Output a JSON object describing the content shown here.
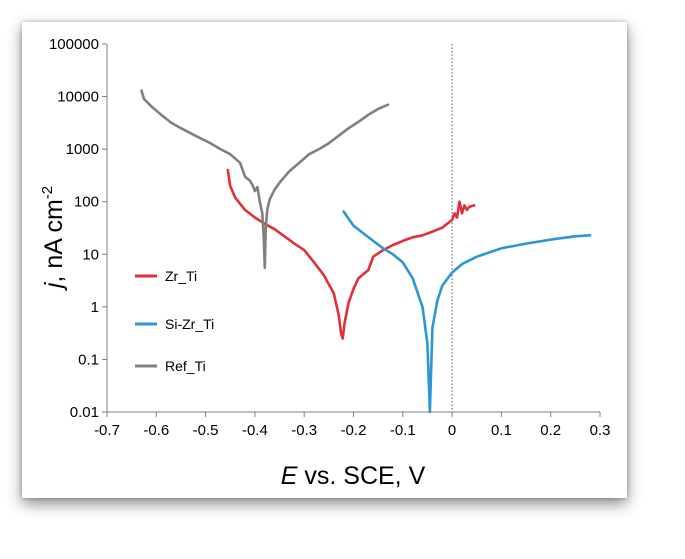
{
  "chart_data": {
    "type": "line",
    "title": "",
    "xlabel": {
      "italic": "E",
      "rest": " vs. SCE, V"
    },
    "ylabel": {
      "italic": "j",
      "rest": ", nA cm",
      "sup": "-2"
    },
    "xlim": [
      -0.7,
      0.3
    ],
    "ylim": [
      0.01,
      100000
    ],
    "yscale": "log",
    "xticks": [
      -0.7,
      -0.6,
      -0.5,
      -0.4,
      -0.3,
      -0.2,
      -0.1,
      0,
      0.1,
      0.2,
      0.3
    ],
    "xtick_labels": [
      "-0.7",
      "-0.6",
      "-0.5",
      "-0.4",
      "-0.3",
      "-0.2",
      "-0.1",
      "0",
      "0.1",
      "0.2",
      "0.3"
    ],
    "yticks": [
      0.01,
      0.1,
      1,
      10,
      100,
      1000,
      10000,
      100000
    ],
    "ytick_labels": [
      "0.01",
      "0.1",
      "1",
      "10",
      "100",
      "1000",
      "10000",
      "100000"
    ],
    "reference_line": {
      "x": 0,
      "style": "dotted"
    },
    "grid": false,
    "legend_position": "left",
    "series": [
      {
        "name": "Zr_Ti",
        "color": "#e0303a",
        "points": [
          [
            -0.455,
            400
          ],
          [
            -0.45,
            200
          ],
          [
            -0.44,
            120
          ],
          [
            -0.42,
            70
          ],
          [
            -0.4,
            50
          ],
          [
            -0.38,
            38
          ],
          [
            -0.36,
            30
          ],
          [
            -0.34,
            22
          ],
          [
            -0.32,
            16
          ],
          [
            -0.3,
            12
          ],
          [
            -0.28,
            7
          ],
          [
            -0.26,
            4
          ],
          [
            -0.24,
            1.8
          ],
          [
            -0.23,
            0.7
          ],
          [
            -0.225,
            0.3
          ],
          [
            -0.222,
            0.25
          ],
          [
            -0.218,
            0.5
          ],
          [
            -0.21,
            1.2
          ],
          [
            -0.2,
            2.2
          ],
          [
            -0.19,
            3.5
          ],
          [
            -0.18,
            4.2
          ],
          [
            -0.17,
            5
          ],
          [
            -0.16,
            9
          ],
          [
            -0.14,
            12
          ],
          [
            -0.12,
            15
          ],
          [
            -0.1,
            18
          ],
          [
            -0.08,
            21
          ],
          [
            -0.06,
            23
          ],
          [
            -0.04,
            27
          ],
          [
            -0.02,
            32
          ],
          [
            0.0,
            45
          ],
          [
            0.005,
            60
          ],
          [
            0.01,
            50
          ],
          [
            0.015,
            100
          ],
          [
            0.02,
            60
          ],
          [
            0.025,
            85
          ],
          [
            0.03,
            70
          ],
          [
            0.035,
            80
          ],
          [
            0.045,
            85
          ]
        ]
      },
      {
        "name": "Si-Zr_Ti",
        "color": "#2e96d2",
        "points": [
          [
            -0.22,
            65
          ],
          [
            -0.2,
            35
          ],
          [
            -0.18,
            25
          ],
          [
            -0.16,
            18
          ],
          [
            -0.14,
            13
          ],
          [
            -0.12,
            10
          ],
          [
            -0.1,
            7
          ],
          [
            -0.08,
            3.5
          ],
          [
            -0.06,
            1
          ],
          [
            -0.05,
            0.2
          ],
          [
            -0.045,
            0.01
          ],
          [
            -0.04,
            0.4
          ],
          [
            -0.03,
            1.3
          ],
          [
            -0.02,
            2.5
          ],
          [
            0.0,
            4.5
          ],
          [
            0.02,
            6.5
          ],
          [
            0.05,
            9
          ],
          [
            0.1,
            13
          ],
          [
            0.15,
            16
          ],
          [
            0.2,
            19
          ],
          [
            0.25,
            22
          ],
          [
            0.28,
            23
          ]
        ]
      },
      {
        "name": "Ref_Ti",
        "color": "#808080",
        "points": [
          [
            -0.63,
            13000
          ],
          [
            -0.625,
            9000
          ],
          [
            -0.61,
            6500
          ],
          [
            -0.59,
            4500
          ],
          [
            -0.57,
            3200
          ],
          [
            -0.55,
            2500
          ],
          [
            -0.53,
            2000
          ],
          [
            -0.51,
            1600
          ],
          [
            -0.49,
            1300
          ],
          [
            -0.47,
            1000
          ],
          [
            -0.45,
            800
          ],
          [
            -0.43,
            550
          ],
          [
            -0.42,
            300
          ],
          [
            -0.41,
            250
          ],
          [
            -0.405,
            210
          ],
          [
            -0.4,
            160
          ],
          [
            -0.395,
            190
          ],
          [
            -0.39,
            100
          ],
          [
            -0.385,
            60
          ],
          [
            -0.382,
            20
          ],
          [
            -0.38,
            5.5
          ],
          [
            -0.378,
            30
          ],
          [
            -0.375,
            70
          ],
          [
            -0.37,
            110
          ],
          [
            -0.36,
            170
          ],
          [
            -0.35,
            230
          ],
          [
            -0.33,
            380
          ],
          [
            -0.31,
            550
          ],
          [
            -0.29,
            800
          ],
          [
            -0.27,
            1000
          ],
          [
            -0.25,
            1300
          ],
          [
            -0.23,
            1800
          ],
          [
            -0.21,
            2500
          ],
          [
            -0.19,
            3300
          ],
          [
            -0.17,
            4500
          ],
          [
            -0.15,
            5800
          ],
          [
            -0.13,
            7000
          ]
        ]
      }
    ]
  }
}
